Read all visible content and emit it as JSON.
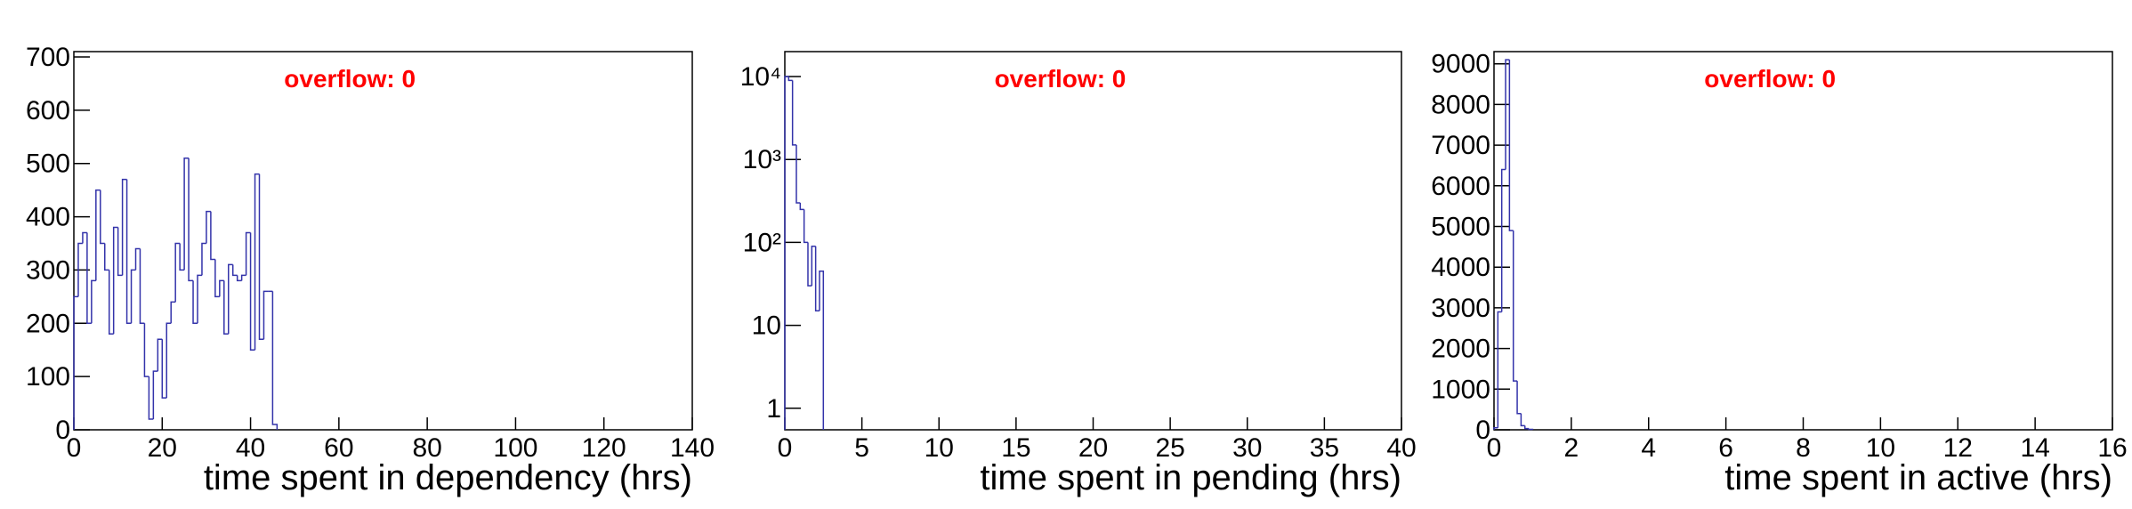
{
  "chart_data": [
    {
      "type": "histogram",
      "x_label": "time spent in dependency (hrs)",
      "annotation": "overflow: 0",
      "color": "#3333aa",
      "bins": [
        0,
        1,
        2,
        3,
        4,
        5,
        6,
        7,
        8,
        9,
        10,
        11,
        12,
        13,
        14,
        15,
        16,
        17,
        18,
        19,
        20,
        21,
        22,
        23,
        24,
        25,
        26,
        27,
        28,
        29,
        30,
        31,
        32,
        33,
        34,
        35,
        36,
        37,
        38,
        39,
        40,
        41,
        42,
        43,
        44,
        45,
        46
      ],
      "values": [
        250,
        350,
        370,
        200,
        280,
        450,
        350,
        300,
        180,
        380,
        290,
        470,
        200,
        300,
        340,
        200,
        100,
        20,
        110,
        170,
        60,
        200,
        240,
        350,
        300,
        510,
        280,
        200,
        290,
        350,
        410,
        320,
        250,
        280,
        180,
        310,
        290,
        280,
        290,
        370,
        150,
        480,
        170,
        260,
        260,
        10
      ],
      "xlim": [
        0,
        140
      ],
      "xticks": [
        0,
        20,
        40,
        60,
        80,
        100,
        120,
        140
      ],
      "ylim": [
        0,
        710
      ],
      "yticks": [
        0,
        100,
        200,
        300,
        400,
        500,
        600,
        700
      ],
      "log_y": false
    },
    {
      "type": "histogram",
      "x_label": "time spent in pending (hrs)",
      "annotation": "overflow: 0",
      "color": "#3333aa",
      "bins": [
        0,
        0.25,
        0.5,
        0.75,
        1,
        1.25,
        1.5,
        1.75,
        2,
        2.25,
        2.5
      ],
      "values": [
        10000,
        9000,
        1500,
        300,
        250,
        100,
        30,
        90,
        15,
        45
      ],
      "xlim": [
        0,
        40
      ],
      "xticks": [
        0,
        5,
        10,
        15,
        20,
        25,
        30,
        35,
        40
      ],
      "ylim": [
        0.55,
        20000
      ],
      "yticks": [
        1,
        10,
        {
          "value": 100,
          "label": "10²"
        },
        {
          "value": 1000,
          "label": "10³"
        },
        {
          "value": 10000,
          "label": "10⁴"
        }
      ],
      "log_y": true
    },
    {
      "type": "histogram",
      "x_label": "time spent in active (hrs)",
      "annotation": "overflow: 0",
      "color": "#3333aa",
      "bins": [
        0,
        0.1,
        0.2,
        0.3,
        0.4,
        0.5,
        0.6,
        0.7,
        0.8,
        0.9,
        1.0
      ],
      "values": [
        50,
        2900,
        6400,
        9100,
        4900,
        1200,
        400,
        100,
        30,
        10
      ],
      "xlim": [
        0,
        16
      ],
      "xticks": [
        0,
        2,
        4,
        6,
        8,
        10,
        12,
        14,
        16
      ],
      "ylim": [
        0,
        9300
      ],
      "yticks": [
        0,
        1000,
        2000,
        3000,
        4000,
        5000,
        6000,
        7000,
        8000,
        9000
      ],
      "log_y": false
    }
  ]
}
